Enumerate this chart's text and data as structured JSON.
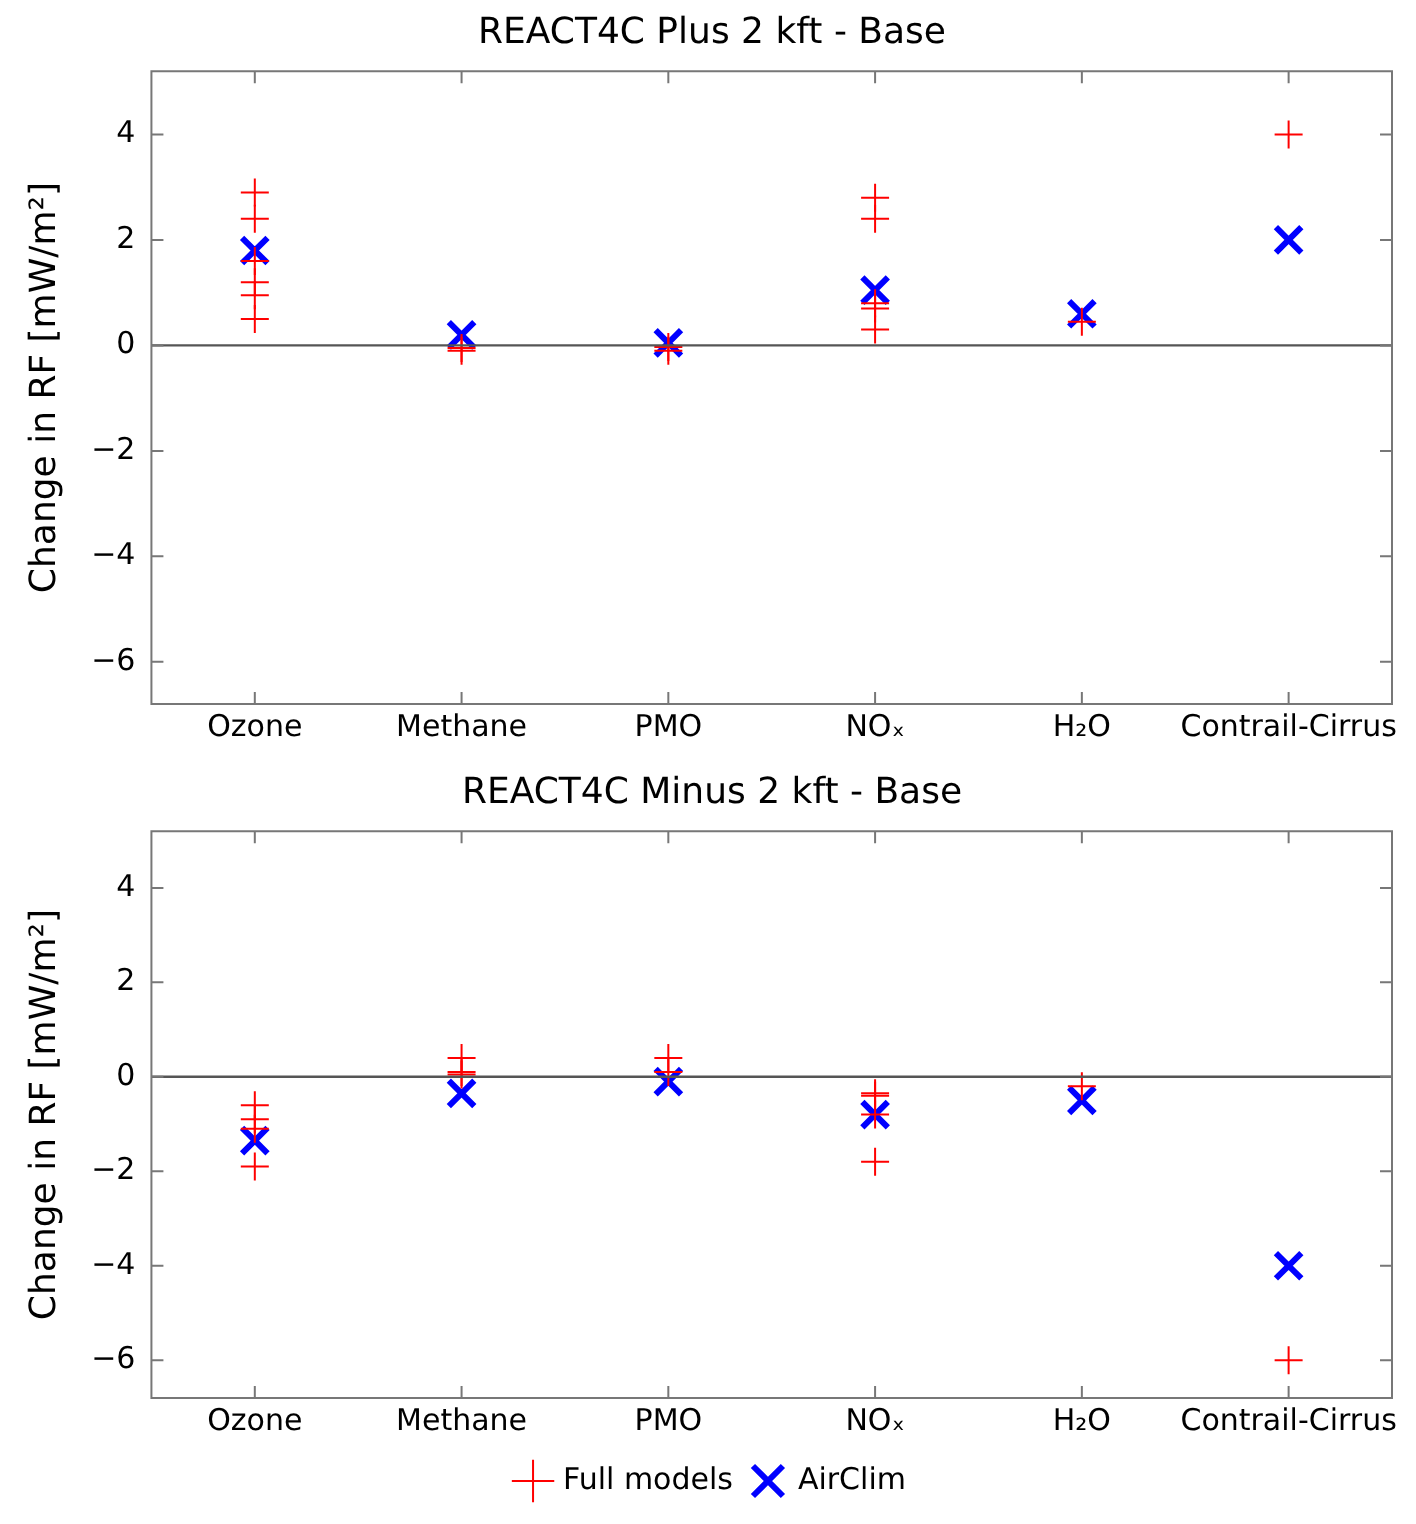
{
  "chart_data": [
    {
      "type": "scatter",
      "title": "REACT4C Plus 2 kft - Base",
      "ylabel": "Change in RF [mW/m²]",
      "categories": [
        "Ozone",
        "Methane",
        "PMO",
        "NOₓ",
        "H₂O",
        "Contrail-Cirrus"
      ],
      "ylim": [
        -6.8,
        5.2
      ],
      "yticks": [
        -6,
        -4,
        -2,
        0,
        2,
        4
      ],
      "grid": false,
      "ref_lines": [
        {
          "axis": "y",
          "value": 0,
          "color": "#555555"
        }
      ],
      "series": [
        {
          "color": "#ff0000",
          "marker": "cross",
          "x": [
            "Ozone",
            "Ozone",
            "Ozone",
            "Ozone",
            "Ozone",
            "Ozone",
            "Methane",
            "Methane",
            "PMO",
            "PMO",
            "NOₓ",
            "NOₓ",
            "NOₓ",
            "NOₓ",
            "NOₓ",
            "H₂O",
            "Contrail-Cirrus"
          ],
          "values": [
            2.9,
            2.4,
            1.6,
            1.2,
            0.95,
            0.5,
            -0.1,
            -0.05,
            -0.03,
            -0.1,
            2.8,
            2.4,
            0.8,
            0.7,
            0.3,
            0.45,
            4.0
          ]
        },
        {
          "color": "#0000ff",
          "marker": "cross",
          "x": [
            "Ozone",
            "Methane",
            "PMO",
            "NOₓ",
            "H₂O",
            "Contrail-Cirrus"
          ],
          "values": [
            1.8,
            0.2,
            0.05,
            1.05,
            0.6,
            2.0
          ]
        }
      ]
    },
    {
      "type": "scatter",
      "title": "REACT4C Minus 2 kft - Base",
      "ylabel": "Change in RF [mW/m²]",
      "categories": [
        "Ozone",
        "Methane",
        "PMO",
        "NOₓ",
        "H₂O",
        "Contrail-Cirrus"
      ],
      "ylim": [
        -6.8,
        5.2
      ],
      "yticks": [
        -6,
        -4,
        -2,
        0,
        2,
        4
      ],
      "grid": false,
      "legend": "bottom",
      "ref_lines": [
        {
          "axis": "y",
          "value": 0,
          "color": "#555555"
        }
      ],
      "series": [
        {
          "name": "Full models",
          "color": "#ff0000",
          "marker": "cross",
          "x": [
            "Ozone",
            "Ozone",
            "Ozone",
            "Ozone",
            "Methane",
            "Methane",
            "Methane",
            "PMO",
            "PMO",
            "NOₓ",
            "NOₓ",
            "NOₓ",
            "NOₓ",
            "H₂O",
            "Contrail-Cirrus"
          ],
          "values": [
            -0.6,
            -0.9,
            -1.1,
            -1.9,
            0.4,
            0.1,
            0.05,
            0.4,
            0.1,
            -0.35,
            -0.4,
            -0.8,
            -1.8,
            -0.2,
            -6.0
          ]
        },
        {
          "name": "AirClim",
          "color": "#0000ff",
          "marker": "cross",
          "x": [
            "Ozone",
            "Methane",
            "PMO",
            "NOₓ",
            "H₂O",
            "Contrail-Cirrus"
          ],
          "values": [
            -1.35,
            -0.35,
            -0.1,
            -0.8,
            -0.5,
            -4.0
          ]
        }
      ]
    }
  ]
}
